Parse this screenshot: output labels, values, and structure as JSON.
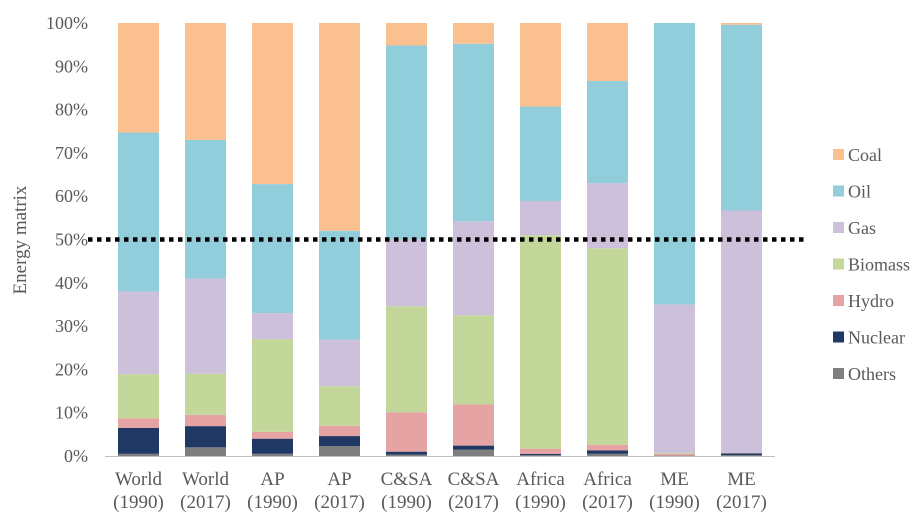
{
  "chart_data": {
    "type": "bar",
    "stacked": true,
    "percent_stacked": true,
    "ylabel": "Energy matrix",
    "ylim": [
      0,
      100
    ],
    "y_ticks": [
      "0%",
      "10%",
      "20%",
      "30%",
      "40%",
      "50%",
      "60%",
      "70%",
      "80%",
      "90%",
      "100%"
    ],
    "categories": [
      [
        "World",
        "(1990)"
      ],
      [
        "World",
        "(2017)"
      ],
      [
        "AP",
        "(1990)"
      ],
      [
        "AP",
        "(2017)"
      ],
      [
        "C&SA",
        "(1990)"
      ],
      [
        "C&SA",
        "(2017)"
      ],
      [
        "Africa",
        "(1990)"
      ],
      [
        "Africa",
        "(2017)"
      ],
      [
        "ME",
        "(1990)"
      ],
      [
        "ME",
        "(2017)"
      ]
    ],
    "series": [
      {
        "name": "Others",
        "color": "#7f7f7f",
        "values": [
          0.5,
          2.0,
          0.5,
          2.3,
          0.3,
          1.5,
          0.2,
          0.5,
          0.1,
          0.2
        ]
      },
      {
        "name": "Nuclear",
        "color": "#1f3864",
        "values": [
          6.0,
          4.9,
          3.5,
          2.3,
          0.7,
          0.9,
          0.3,
          0.8,
          0.0,
          0.4
        ]
      },
      {
        "name": "Hydro",
        "color": "#e6a3a3",
        "values": [
          2.2,
          2.6,
          1.6,
          2.4,
          9.1,
          9.5,
          1.2,
          1.3,
          0.4,
          0.1
        ]
      },
      {
        "name": "Biomass",
        "color": "#c4d79b",
        "values": [
          10.2,
          9.5,
          21.4,
          9.1,
          24.5,
          20.6,
          49.3,
          45.4,
          0.2,
          0.0
        ]
      },
      {
        "name": "Gas",
        "color": "#ccc0da",
        "values": [
          19.1,
          22.0,
          6.0,
          10.8,
          15.4,
          21.7,
          7.9,
          15.0,
          34.3,
          56.0
        ]
      },
      {
        "name": "Oil",
        "color": "#92cddc",
        "values": [
          36.7,
          32.0,
          29.8,
          25.1,
          44.8,
          41.0,
          21.8,
          23.6,
          65.0,
          42.9
        ]
      },
      {
        "name": "Coal",
        "color": "#fac090",
        "values": [
          25.3,
          27.0,
          37.2,
          48.0,
          5.2,
          4.8,
          19.3,
          13.4,
          0.0,
          0.4
        ]
      }
    ],
    "legend_order": [
      "Coal",
      "Oil",
      "Gas",
      "Biomass",
      "Hydro",
      "Nuclear",
      "Others"
    ],
    "legend_position": "right",
    "reference_line": {
      "value": 50,
      "style": "dotted",
      "color": "#000000"
    },
    "grid": false
  }
}
